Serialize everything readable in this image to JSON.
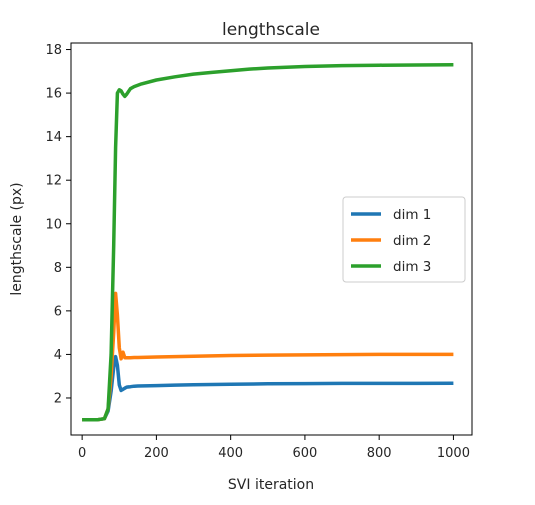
{
  "chart_data": {
    "type": "line",
    "title": "lengthscale",
    "xlabel": "SVI iteration",
    "ylabel": "lengthscale (px)",
    "xlim": [
      -30,
      1050
    ],
    "ylim": [
      0.3,
      18.3
    ],
    "x_ticks": [
      0,
      200,
      400,
      600,
      800,
      1000
    ],
    "y_ticks": [
      2,
      4,
      6,
      8,
      10,
      12,
      14,
      16,
      18
    ],
    "grid": false,
    "legend": "center-right",
    "series": [
      {
        "name": "dim 1",
        "color": "#1f77b4",
        "x": [
          0,
          20,
          40,
          60,
          70,
          78,
          85,
          90,
          95,
          100,
          105,
          110,
          115,
          120,
          130,
          140,
          150,
          200,
          250,
          300,
          400,
          500,
          600,
          700,
          800,
          900,
          1000
        ],
        "y": [
          1.0,
          1.0,
          1.0,
          1.05,
          1.4,
          2.3,
          3.4,
          3.9,
          3.5,
          2.6,
          2.35,
          2.4,
          2.45,
          2.5,
          2.52,
          2.54,
          2.55,
          2.57,
          2.59,
          2.61,
          2.63,
          2.65,
          2.66,
          2.67,
          2.67,
          2.67,
          2.68
        ]
      },
      {
        "name": "dim 2",
        "color": "#ff7f0e",
        "x": [
          0,
          20,
          40,
          60,
          70,
          78,
          85,
          90,
          95,
          100,
          105,
          110,
          115,
          120,
          130,
          140,
          150,
          200,
          250,
          300,
          400,
          500,
          600,
          700,
          800,
          900,
          1000
        ],
        "y": [
          1.0,
          1.0,
          1.0,
          1.05,
          1.5,
          3.0,
          5.0,
          6.8,
          5.8,
          4.3,
          3.8,
          4.1,
          3.85,
          3.85,
          3.85,
          3.86,
          3.86,
          3.88,
          3.9,
          3.92,
          3.95,
          3.97,
          3.98,
          3.99,
          4.0,
          4.0,
          4.0
        ]
      },
      {
        "name": "dim 3",
        "color": "#2ca02c",
        "x": [
          0,
          20,
          40,
          60,
          70,
          78,
          85,
          90,
          95,
          100,
          105,
          110,
          115,
          120,
          130,
          140,
          160,
          200,
          250,
          300,
          350,
          400,
          450,
          500,
          550,
          600,
          700,
          800,
          900,
          1000
        ],
        "y": [
          1.0,
          1.0,
          1.0,
          1.05,
          1.5,
          4.0,
          9.0,
          13.5,
          16.0,
          16.15,
          16.1,
          15.95,
          15.85,
          15.95,
          16.2,
          16.3,
          16.42,
          16.6,
          16.75,
          16.87,
          16.95,
          17.03,
          17.1,
          17.15,
          17.19,
          17.22,
          17.26,
          17.28,
          17.29,
          17.3
        ]
      }
    ]
  }
}
